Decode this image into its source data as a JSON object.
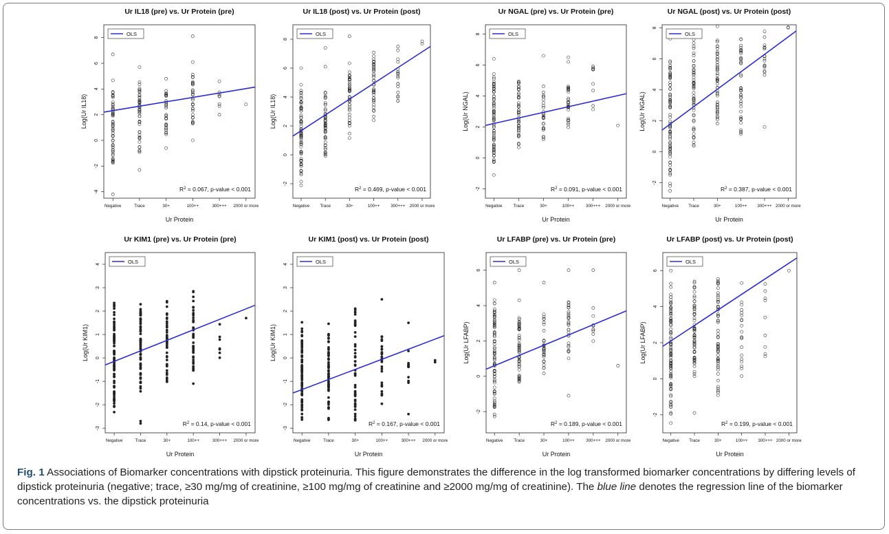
{
  "figure": {
    "label": "Fig. 1",
    "caption_part1": "Associations of Biomarker concentrations with dipstick proteinuria. This figure demonstrates the difference in the log transformed biomarker concentrations by differing levels of dipstick proteinuria (negative; trace, ≥30 mg/mg of creatinine, ≥100 mg/mg of creatinine and ≥2000 mg/mg of creatinine). The ",
    "caption_italic": "blue line",
    "caption_part2": " denotes the regression line of the biomarker concentrations vs. the dipstick proteinuria"
  },
  "colors": {
    "ols_line": "#2b2bd6",
    "points": "#222222",
    "text": "#111111"
  },
  "chart_data": [
    {
      "type": "scatter",
      "title": "Ur IL18 (pre) vs. Ur Protein (pre)",
      "xlabel": "Ur Protein",
      "ylabel": "Log(Ur IL18)",
      "categories": [
        "Negative",
        "Trace",
        "30+",
        "100++",
        "300+++",
        "2000 or more"
      ],
      "ylim": [
        -4.5,
        9
      ],
      "yticks": [
        "-4",
        "-2",
        "0",
        "2",
        "4",
        "6",
        "8"
      ],
      "legend": {
        "label": "OLS",
        "position": "top-left"
      },
      "annotation": {
        "r2": "0.067",
        "p": "p-value < 0.001"
      },
      "ols_line": [
        2.2,
        4.15
      ],
      "filled_points": false,
      "points": [
        {
          "cat": 0,
          "range": [
            -2.5,
            4.8
          ],
          "n": 55,
          "extra": [
            6.7,
            -4.2
          ]
        },
        {
          "cat": 1,
          "range": [
            -1.4,
            4.6
          ],
          "n": 45,
          "extra": [
            5.7,
            -2.3
          ]
        },
        {
          "cat": 2,
          "range": [
            0.0,
            4.3
          ],
          "n": 28,
          "extra": [
            4.8,
            -0.6
          ]
        },
        {
          "cat": 3,
          "range": [
            1.0,
            5.2
          ],
          "n": 28,
          "extra": [
            8.1,
            6.1,
            0.0
          ]
        },
        {
          "cat": 4,
          "range": [
            2.5,
            4.3
          ],
          "n": 6,
          "extra": [
            4.6,
            2.0
          ]
        },
        {
          "cat": 5,
          "range": [
            2.8,
            2.8
          ],
          "n": 1,
          "extra": []
        }
      ]
    },
    {
      "type": "scatter",
      "title": "Ur IL18 (post) vs. Ur Protein (post)",
      "xlabel": "",
      "ylabel": "Log(Ur IL18)",
      "categories": [
        "Negative",
        "Trace",
        "30+",
        "100++",
        "300+++",
        "2000 or more"
      ],
      "ylim": [
        -3,
        9
      ],
      "yticks": [
        "-2",
        "0",
        "2",
        "4",
        "6",
        "8"
      ],
      "legend": {
        "label": "OLS",
        "position": "top-left"
      },
      "annotation": {
        "r2": "0.469",
        "p": "p-value < 0.001"
      },
      "ols_line": [
        1.3,
        7.5
      ],
      "filled_points": false,
      "points": [
        {
          "cat": 0,
          "range": [
            -2.5,
            5.0
          ],
          "n": 70,
          "extra": [
            6.0
          ]
        },
        {
          "cat": 1,
          "range": [
            -0.4,
            4.5
          ],
          "n": 50,
          "extra": [
            7.4,
            6.1
          ]
        },
        {
          "cat": 2,
          "range": [
            0.8,
            6.5
          ],
          "n": 45,
          "extra": [
            8.2
          ]
        },
        {
          "cat": 3,
          "range": [
            1.8,
            7.4
          ],
          "n": 40,
          "extra": []
        },
        {
          "cat": 4,
          "range": [
            3.4,
            7.6
          ],
          "n": 18,
          "extra": []
        },
        {
          "cat": 5,
          "range": [
            7.0,
            8.3
          ],
          "n": 2,
          "extra": []
        }
      ]
    },
    {
      "type": "scatter",
      "title": "Ur NGAL (pre) vs. Ur Protein (pre)",
      "xlabel": "Ur Protein",
      "ylabel": "Log(Ur NGAL)",
      "categories": [
        "Negative",
        "Trace",
        "30+",
        "100++",
        "300+++",
        "2000 or more"
      ],
      "ylim": [
        -2.6,
        8.6
      ],
      "yticks": [
        "-2",
        "0",
        "2",
        "4",
        "6",
        "8"
      ],
      "legend": {
        "label": "OLS",
        "position": "top-left"
      },
      "annotation": {
        "r2": "0.091",
        "p": "p-value < 0.001"
      },
      "ols_line": [
        2.1,
        4.15
      ],
      "filled_points": false,
      "points": [
        {
          "cat": 0,
          "range": [
            -0.5,
            5.5
          ],
          "n": 70,
          "extra": [
            6.4,
            -1.1
          ]
        },
        {
          "cat": 1,
          "range": [
            0.3,
            5.5
          ],
          "n": 45,
          "extra": []
        },
        {
          "cat": 2,
          "range": [
            0.8,
            5.0
          ],
          "n": 26,
          "extra": [
            6.6
          ]
        },
        {
          "cat": 3,
          "range": [
            1.8,
            5.2
          ],
          "n": 26,
          "extra": [
            6.5,
            6.2
          ]
        },
        {
          "cat": 4,
          "range": [
            2.1,
            6.9
          ],
          "n": 8,
          "extra": [
            5.7
          ]
        },
        {
          "cat": 5,
          "range": [
            2.1,
            2.1
          ],
          "n": 1,
          "extra": []
        }
      ]
    },
    {
      "type": "scatter",
      "title": "Ur NGAL (post) vs. Ur Protein (post)",
      "xlabel": "Ur Protein",
      "ylabel": "Log(Ur NGAL)",
      "categories": [
        "Negative",
        "Trace",
        "30+",
        "100++",
        "300+++",
        "2000 or more"
      ],
      "ylim": [
        -3,
        8.2
      ],
      "yticks": [
        "-2",
        "0",
        "2",
        "4",
        "6",
        "8"
      ],
      "legend": {
        "label": "OLS",
        "position": "top-left"
      },
      "annotation": {
        "r2": "0.387",
        "p": "p-value < 0.001"
      },
      "ols_line": [
        1.4,
        7.8
      ],
      "filled_points": false,
      "points": [
        {
          "cat": 0,
          "range": [
            -2.9,
            6.2
          ],
          "n": 75,
          "extra": [
            7.3
          ]
        },
        {
          "cat": 1,
          "range": [
            -0.3,
            7.8
          ],
          "n": 55,
          "extra": []
        },
        {
          "cat": 2,
          "range": [
            1.1,
            7.6
          ],
          "n": 45,
          "extra": [
            8.1
          ]
        },
        {
          "cat": 3,
          "range": [
            0.5,
            8.0
          ],
          "n": 40,
          "extra": []
        },
        {
          "cat": 4,
          "range": [
            4.2,
            7.9
          ],
          "n": 16,
          "extra": [
            1.6
          ]
        },
        {
          "cat": 5,
          "range": [
            8.0,
            8.1
          ],
          "n": 2,
          "extra": []
        }
      ]
    },
    {
      "type": "scatter",
      "title": "Ur KIM1 (pre) vs. Ur Protein (pre)",
      "xlabel": "Ur Protein",
      "ylabel": "Log(Ur KIM1)",
      "categories": [
        "Negative",
        "Trace",
        "30+",
        "100++",
        "300+++",
        "2000 or more"
      ],
      "ylim": [
        -3.2,
        4.5
      ],
      "yticks": [
        "-3",
        "-2",
        "-1",
        "0",
        "1",
        "2",
        "3",
        "4"
      ],
      "legend": {
        "label": "OLS",
        "position": "top-left"
      },
      "annotation": {
        "r2": "0.14",
        "p": "p-value < 0.001"
      },
      "ols_line": [
        -0.3,
        2.25
      ],
      "filled_points": true,
      "points": [
        {
          "cat": 0,
          "range": [
            -2.8,
            2.5
          ],
          "n": 90,
          "extra": []
        },
        {
          "cat": 1,
          "range": [
            -1.5,
            2.4
          ],
          "n": 60,
          "extra": [
            -2.8,
            -2.7
          ]
        },
        {
          "cat": 2,
          "range": [
            -1.2,
            2.7
          ],
          "n": 45,
          "extra": []
        },
        {
          "cat": 3,
          "range": [
            -0.8,
            3.0
          ],
          "n": 45,
          "extra": [
            -1.1
          ]
        },
        {
          "cat": 4,
          "range": [
            -0.3,
            1.8
          ],
          "n": 8,
          "extra": []
        },
        {
          "cat": 5,
          "range": [
            1.7,
            1.7
          ],
          "n": 1,
          "extra": []
        }
      ]
    },
    {
      "type": "scatter",
      "title": "Ur KIM1 (post) vs. Ur Protein (post)",
      "xlabel": "Ur Protein",
      "ylabel": "Log(Ur KIM1)",
      "categories": [
        "Negative",
        "Trace",
        "30+",
        "100++",
        "300+++",
        "2000 or more"
      ],
      "ylim": [
        -3.2,
        4.5
      ],
      "yticks": [
        "-3",
        "-2",
        "-1",
        "0",
        "1",
        "2",
        "3",
        "4"
      ],
      "legend": {
        "label": "OLS",
        "position": "top-left"
      },
      "annotation": {
        "r2": "0.167",
        "p": "p-value < 0.001"
      },
      "ols_line": [
        -1.5,
        0.95
      ],
      "filled_points": true,
      "points": [
        {
          "cat": 0,
          "range": [
            -2.9,
            1.6
          ],
          "n": 90,
          "extra": []
        },
        {
          "cat": 1,
          "range": [
            -2.8,
            1.6
          ],
          "n": 60,
          "extra": []
        },
        {
          "cat": 2,
          "range": [
            -2.9,
            2.3
          ],
          "n": 50,
          "extra": []
        },
        {
          "cat": 3,
          "range": [
            -2.3,
            1.4
          ],
          "n": 30,
          "extra": [
            2.5
          ]
        },
        {
          "cat": 4,
          "range": [
            -1.5,
            0.6
          ],
          "n": 10,
          "extra": [
            1.5,
            -2.4
          ]
        },
        {
          "cat": 5,
          "range": [
            -0.2,
            -0.1
          ],
          "n": 2,
          "extra": []
        }
      ]
    },
    {
      "type": "scatter",
      "title": "Ur LFABP (pre) vs. Ur Protein (pre)",
      "xlabel": "Ur Protein",
      "ylabel": "Log(Ur LFABP)",
      "categories": [
        "Negative",
        "Trace",
        "30+",
        "100++",
        "300+++",
        "2000 or more"
      ],
      "ylim": [
        -3.2,
        7
      ],
      "yticks": [
        "-2",
        "0",
        "2",
        "4",
        "6"
      ],
      "legend": {
        "label": "OLS",
        "position": "top-left"
      },
      "annotation": {
        "r2": "0.189",
        "p": "p-value < 0.001"
      },
      "ols_line": [
        0.4,
        3.7
      ],
      "filled_points": false,
      "points": [
        {
          "cat": 0,
          "range": [
            -2.8,
            4.5
          ],
          "n": 80,
          "extra": [
            5.3
          ]
        },
        {
          "cat": 1,
          "range": [
            -0.9,
            3.6
          ],
          "n": 55,
          "extra": [
            6.0,
            4.3
          ]
        },
        {
          "cat": 2,
          "range": [
            -0.2,
            4.0
          ],
          "n": 30,
          "extra": [
            5.3
          ]
        },
        {
          "cat": 3,
          "range": [
            0.8,
            4.5
          ],
          "n": 28,
          "extra": [
            6.0,
            -1.1
          ]
        },
        {
          "cat": 4,
          "range": [
            0.8,
            4.3
          ],
          "n": 10,
          "extra": [
            6.0
          ]
        },
        {
          "cat": 5,
          "range": [
            0.6,
            0.6
          ],
          "n": 1,
          "extra": []
        }
      ]
    },
    {
      "type": "scatter",
      "title": "Ur LFABP (post) vs. Ur Protein (post)",
      "xlabel": "Ur Protein",
      "ylabel": "Log(Ur LFABP)",
      "categories": [
        "Negative",
        "Trace",
        "30+",
        "100++",
        "300+++",
        "2000 or more"
      ],
      "ylim": [
        -3,
        7
      ],
      "yticks": [
        "-2",
        "0",
        "2",
        "4",
        "6"
      ],
      "legend": {
        "label": "OLS",
        "position": "top-left"
      },
      "annotation": {
        "r2": "0.199",
        "p": "p-value < 0.001"
      },
      "ols_line": [
        1.8,
        6.7
      ],
      "filled_points": false,
      "points": [
        {
          "cat": 0,
          "range": [
            -2.8,
            5.5
          ],
          "n": 90,
          "extra": [
            6.0
          ]
        },
        {
          "cat": 1,
          "range": [
            -0.5,
            6.0
          ],
          "n": 60,
          "extra": [
            -1.9
          ]
        },
        {
          "cat": 2,
          "range": [
            -1.1,
            6.0
          ],
          "n": 55,
          "extra": []
        },
        {
          "cat": 3,
          "range": [
            -0.2,
            5.8
          ],
          "n": 20,
          "extra": []
        },
        {
          "cat": 4,
          "range": [
            0.8,
            6.0
          ],
          "n": 8,
          "extra": [
            2.4
          ]
        },
        {
          "cat": 5,
          "range": [
            6.0,
            6.0
          ],
          "n": 1,
          "extra": []
        }
      ]
    }
  ]
}
